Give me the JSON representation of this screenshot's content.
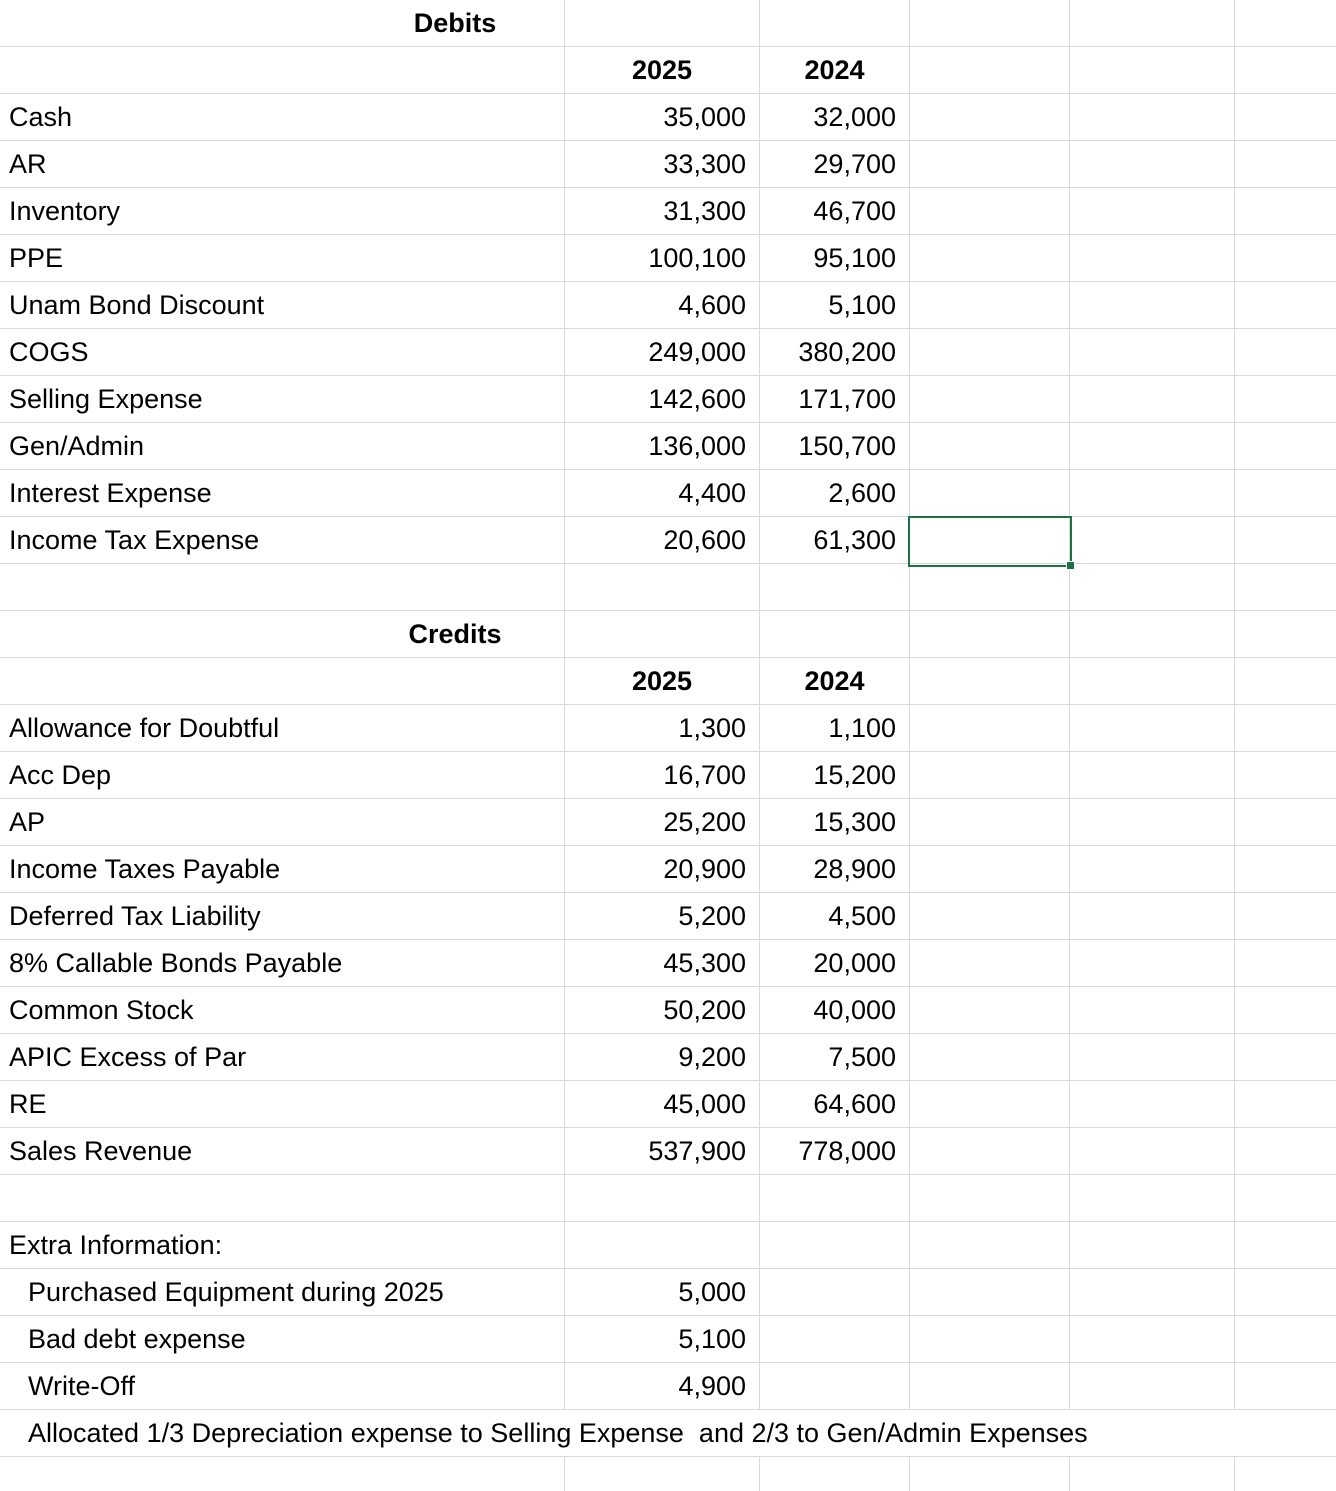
{
  "selection": {
    "color": "#1F7145"
  },
  "colors": {
    "gridline": "#D9D9D9",
    "background": "#FFFFFF",
    "text": "#000000"
  },
  "debits": {
    "title": "Debits",
    "year_2025": "2025",
    "year_2024": "2024",
    "rows": [
      {
        "label": "Cash",
        "y2025": "35,000",
        "y2024": "32,000"
      },
      {
        "label": "AR",
        "y2025": "33,300",
        "y2024": "29,700"
      },
      {
        "label": "Inventory",
        "y2025": "31,300",
        "y2024": "46,700"
      },
      {
        "label": "PPE",
        "y2025": "100,100",
        "y2024": "95,100"
      },
      {
        "label": "Unam Bond Discount",
        "y2025": "4,600",
        "y2024": "5,100"
      },
      {
        "label": "COGS",
        "y2025": "249,000",
        "y2024": "380,200"
      },
      {
        "label": "Selling Expense",
        "y2025": "142,600",
        "y2024": "171,700"
      },
      {
        "label": "Gen/Admin",
        "y2025": "136,000",
        "y2024": "150,700"
      },
      {
        "label": "Interest Expense",
        "y2025": "4,400",
        "y2024": "2,600"
      },
      {
        "label": "Income Tax Expense",
        "y2025": "20,600",
        "y2024": "61,300"
      }
    ]
  },
  "credits": {
    "title": "Credits",
    "year_2025": "2025",
    "year_2024": "2024",
    "rows": [
      {
        "label": "Allowance for Doubtful",
        "y2025": "1,300",
        "y2024": "1,100"
      },
      {
        "label": "Acc Dep",
        "y2025": "16,700",
        "y2024": "15,200"
      },
      {
        "label": "AP",
        "y2025": "25,200",
        "y2024": "15,300"
      },
      {
        "label": "Income Taxes Payable",
        "y2025": "20,900",
        "y2024": "28,900"
      },
      {
        "label": "Deferred Tax Liability",
        "y2025": "5,200",
        "y2024": "4,500"
      },
      {
        "label": "8% Callable Bonds Payable",
        "y2025": "45,300",
        "y2024": "20,000"
      },
      {
        "label": "Common Stock",
        "y2025": "50,200",
        "y2024": "40,000"
      },
      {
        "label": "APIC Excess of Par",
        "y2025": "9,200",
        "y2024": "7,500"
      },
      {
        "label": "RE",
        "y2025": "45,000",
        "y2024": "64,600"
      },
      {
        "label": "Sales Revenue",
        "y2025": "537,900",
        "y2024": "778,000"
      }
    ]
  },
  "extra": {
    "title": "Extra Information:",
    "items": [
      {
        "label": "Purchased Equipment during 2025",
        "value": "5,000"
      },
      {
        "label": "Bad debt expense",
        "value": "5,100"
      },
      {
        "label": "Write-Off",
        "value": "4,900"
      }
    ],
    "note": "Allocated 1/3 Depreciation expense to Selling Expense  and 2/3 to Gen/Admin Expenses"
  }
}
